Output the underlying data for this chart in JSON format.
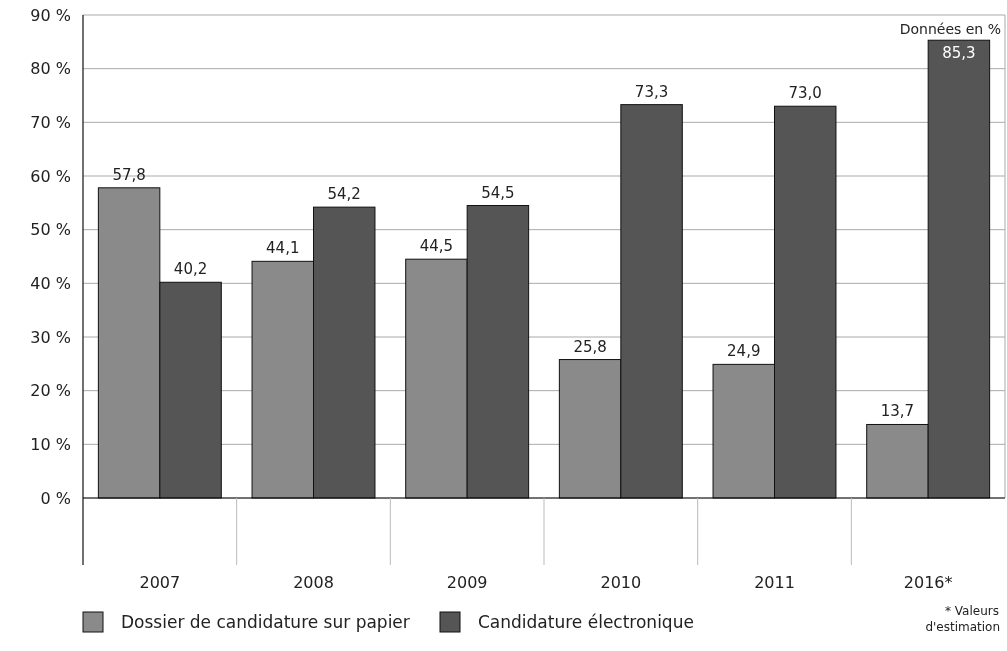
{
  "chart_data": {
    "type": "bar",
    "categories": [
      "2007",
      "2008",
      "2009",
      "2010",
      "2011",
      "2016*"
    ],
    "series": [
      {
        "name": "Dossier de candidature sur papier",
        "color": "#8a8a8a",
        "values": [
          57.8,
          44.1,
          44.5,
          25.8,
          24.9,
          13.7
        ],
        "value_labels": [
          "57,8",
          "44,1",
          "44,5",
          "25,8",
          "24,9",
          "13,7"
        ]
      },
      {
        "name": "Candidature électronique",
        "color": "#555555",
        "values": [
          40.2,
          54.2,
          54.5,
          73.3,
          73.0,
          85.3
        ],
        "value_labels": [
          "40,2",
          "54,2",
          "54,5",
          "73,3",
          "73,0",
          "85,3"
        ]
      }
    ],
    "ylim": [
      0,
      90
    ],
    "yticks": [
      {
        "value": 0,
        "label": "0 %"
      },
      {
        "value": 10,
        "label": "10 %"
      },
      {
        "value": 20,
        "label": "20 %"
      },
      {
        "value": 30,
        "label": "30 %"
      },
      {
        "value": 40,
        "label": "40 %"
      },
      {
        "value": 50,
        "label": "50 %"
      },
      {
        "value": 60,
        "label": "60 %"
      },
      {
        "value": 70,
        "label": "70 %"
      },
      {
        "value": 80,
        "label": "80 %"
      },
      {
        "value": 90,
        "label": "90 %"
      }
    ],
    "grid": "y",
    "legend": "bottom",
    "annotations": [
      "Données en %",
      "* Valeurs d'estimation"
    ]
  }
}
